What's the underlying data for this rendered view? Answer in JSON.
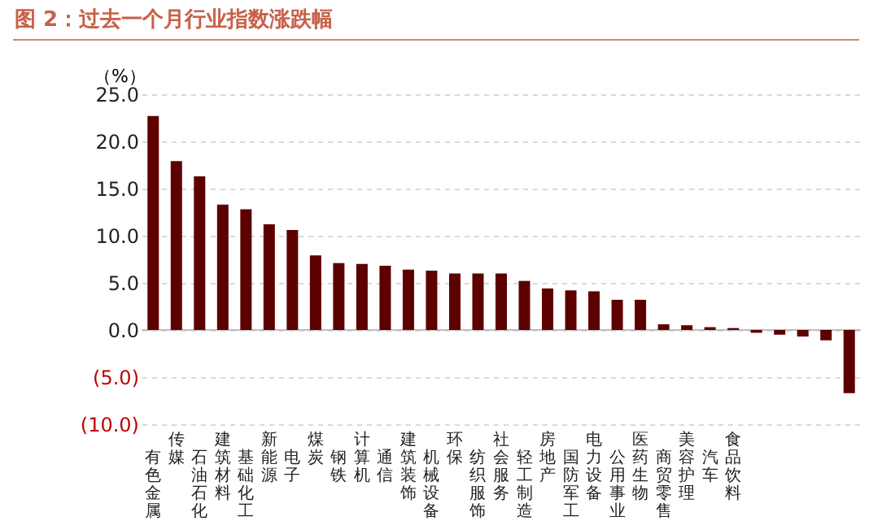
{
  "chart_data": {
    "type": "bar",
    "title": "图 2：过去一个月行业指数涨跌幅",
    "ylabel": "（%）",
    "categories": [
      "有色金属",
      "传媒",
      "石油石化",
      "建筑材料",
      "基础化工",
      "新能源",
      "电子",
      "煤炭",
      "钢铁",
      "计算机",
      "通信",
      "建筑装饰",
      "机械设备",
      "环保",
      "纺织服饰",
      "社会服务",
      "轻工制造",
      "房地产",
      "国防军工",
      "电力设备",
      "公用事业",
      "医药生物",
      "商贸零售",
      "美容护理",
      "汽车",
      "食品饮料",
      null,
      null,
      null,
      null,
      null
    ],
    "values": [
      22.7,
      17.9,
      16.3,
      13.3,
      12.8,
      11.2,
      10.6,
      7.9,
      7.1,
      7.0,
      6.8,
      6.4,
      6.3,
      6.0,
      6.0,
      6.0,
      5.2,
      4.4,
      4.2,
      4.1,
      3.2,
      3.2,
      0.6,
      0.5,
      0.3,
      0.2,
      -0.3,
      -0.5,
      -0.7,
      -1.1,
      -6.7
    ],
    "color": "#5c0000",
    "ylim": [
      -10,
      25
    ],
    "yticks": [
      {
        "value": -10,
        "label": "(10.0)"
      },
      {
        "value": -5,
        "label": "(5.0)"
      },
      {
        "value": 0,
        "label": "0.0"
      },
      {
        "value": 5,
        "label": "5.0"
      },
      {
        "value": 10,
        "label": "10.0"
      },
      {
        "value": 15,
        "label": "15.0"
      },
      {
        "value": 20,
        "label": "20.0"
      },
      {
        "value": 25,
        "label": "25.0"
      }
    ],
    "grid": "y"
  }
}
